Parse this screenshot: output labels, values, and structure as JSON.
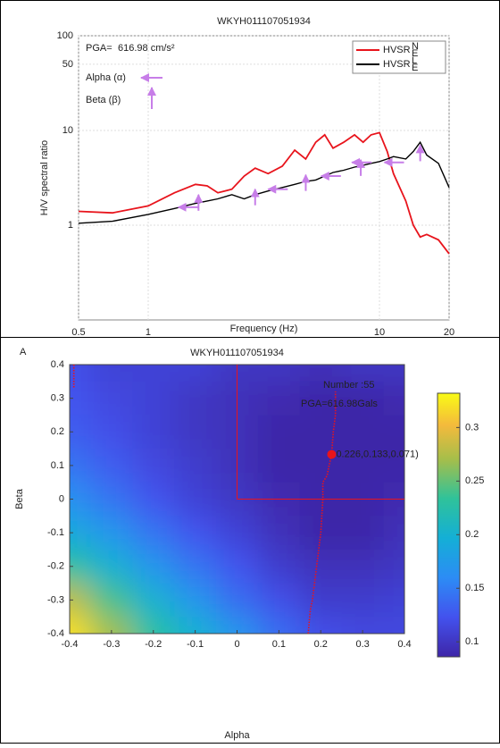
{
  "chart_data": [
    {
      "type": "line",
      "title": "WKYH011107051934",
      "x_label": "Frequency (Hz)",
      "y_label": "H/V spectral ratio",
      "log_x": true,
      "log_y": true,
      "grid": true,
      "legend": "upper right",
      "xlim": [
        0.5,
        20
      ],
      "xticks": [
        0.5,
        1,
        10,
        20
      ],
      "ylim": [
        0.1,
        100
      ],
      "yticks": [
        1,
        10,
        50,
        100
      ],
      "annotation": {
        "pga_label": "PGA=",
        "pga_value": "616.98 cm/s²",
        "alpha_label": "Alpha (α)",
        "beta_label": "Beta (β)",
        "arrow_color": "#c77ee8"
      },
      "x": [
        0.5,
        0.7,
        1,
        1.3,
        1.6,
        1.8,
        2,
        2.3,
        2.6,
        2.9,
        3.3,
        3.8,
        4.3,
        4.8,
        5.3,
        5.8,
        6.3,
        7,
        7.8,
        8.5,
        9.2,
        10,
        10.8,
        11.5,
        13,
        14,
        15,
        16,
        18,
        20
      ],
      "series": [
        {
          "name": "HVSR",
          "subscript": "E",
          "superscript": "N",
          "color": "#e8141c",
          "values": [
            1.4,
            1.35,
            1.6,
            2.2,
            2.7,
            2.6,
            2.2,
            2.4,
            3.3,
            4.0,
            3.5,
            4.2,
            6.2,
            5.0,
            7.5,
            9.0,
            6.5,
            7.5,
            9.0,
            7.5,
            9.0,
            9.5,
            6.0,
            3.5,
            1.8,
            1.0,
            0.75,
            0.8,
            0.7,
            0.5
          ]
        },
        {
          "name": "HVSR",
          "subscript": "E",
          "superscript": "L",
          "color": "#000000",
          "values": [
            1.05,
            1.1,
            1.3,
            1.5,
            1.7,
            1.8,
            1.9,
            2.1,
            1.9,
            2.1,
            2.3,
            2.5,
            2.7,
            2.9,
            3.0,
            3.3,
            3.6,
            3.8,
            4.1,
            4.3,
            4.5,
            4.7,
            5.0,
            5.3,
            5.0,
            6.0,
            7.5,
            5.5,
            4.5,
            2.5
          ]
        }
      ],
      "alpha_markers": {
        "x": [
          1.35,
          3.3,
          5.6,
          7.6,
          10.5
        ],
        "y": [
          1.55,
          2.4,
          3.3,
          4.6,
          4.6
        ]
      },
      "beta_markers": {
        "x": [
          1.65,
          2.9,
          4.8,
          8.3,
          15
        ],
        "y": [
          2.1,
          2.4,
          3.4,
          4.9,
          7.0
        ]
      }
    },
    {
      "type": "heatmap",
      "panel_label": "A",
      "title": "WKYH011107051934",
      "x_label": "Alpha",
      "y_label": "Beta",
      "xlim": [
        -0.4,
        0.4
      ],
      "xticks": [
        -0.4,
        -0.3,
        -0.2,
        -0.1,
        0,
        0.1,
        0.2,
        0.3,
        0.4
      ],
      "ylim": [
        -0.4,
        0.4
      ],
      "yticks": [
        -0.4,
        -0.3,
        -0.2,
        -0.1,
        0,
        0.1,
        0.2,
        0.3,
        0.4
      ],
      "clim": [
        0.086,
        0.332
      ],
      "cticks": [
        0.1,
        0.15,
        0.2,
        0.25,
        0.3
      ],
      "grid_x": [
        -0.4,
        -0.3,
        -0.2,
        -0.1,
        0,
        0.1,
        0.2,
        0.3,
        0.4
      ],
      "grid_y": [
        0.4,
        0.3,
        0.2,
        0.1,
        0,
        -0.1,
        -0.2,
        -0.3,
        -0.4
      ],
      "z": [
        [
          0.12,
          0.11,
          0.11,
          0.11,
          0.1,
          0.1,
          0.095,
          0.1,
          0.1
        ],
        [
          0.125,
          0.115,
          0.11,
          0.1,
          0.095,
          0.09,
          0.085,
          0.085,
          0.09
        ],
        [
          0.13,
          0.12,
          0.11,
          0.1,
          0.095,
          0.085,
          0.075,
          0.075,
          0.085
        ],
        [
          0.145,
          0.13,
          0.115,
          0.105,
          0.095,
          0.085,
          0.075,
          0.075,
          0.085
        ],
        [
          0.165,
          0.145,
          0.125,
          0.11,
          0.1,
          0.09,
          0.08,
          0.08,
          0.09
        ],
        [
          0.19,
          0.17,
          0.145,
          0.125,
          0.11,
          0.095,
          0.085,
          0.085,
          0.095
        ],
        [
          0.23,
          0.2,
          0.17,
          0.145,
          0.125,
          0.105,
          0.095,
          0.095,
          0.1
        ],
        [
          0.28,
          0.24,
          0.2,
          0.17,
          0.14,
          0.12,
          0.105,
          0.105,
          0.11
        ],
        [
          0.32,
          0.27,
          0.23,
          0.2,
          0.17,
          0.14,
          0.12,
          0.115,
          0.115
        ]
      ],
      "colormap": "parula",
      "annotation": {
        "number": "Number :55",
        "pga": "PGA=616.98Gals"
      },
      "line_color": "#e8141c",
      "min_path": {
        "x": [
          0.17,
          0.175,
          0.18,
          0.19,
          0.2,
          0.205,
          0.205,
          0.215,
          0.22,
          0.226,
          0.23,
          0.235,
          0.235
        ],
        "y": [
          -0.4,
          -0.33,
          -0.3,
          -0.2,
          -0.1,
          0.0,
          0.05,
          0.07,
          0.1,
          0.133,
          0.2,
          0.25,
          0.32
        ]
      },
      "edge_path": {
        "x": [
          -0.39,
          -0.39
        ],
        "y": [
          0.4,
          0.33
        ]
      },
      "optimum": {
        "x": 0.226,
        "y": 0.133,
        "value": 0.071,
        "label": "0.226,0.133,0.071)"
      }
    }
  ]
}
